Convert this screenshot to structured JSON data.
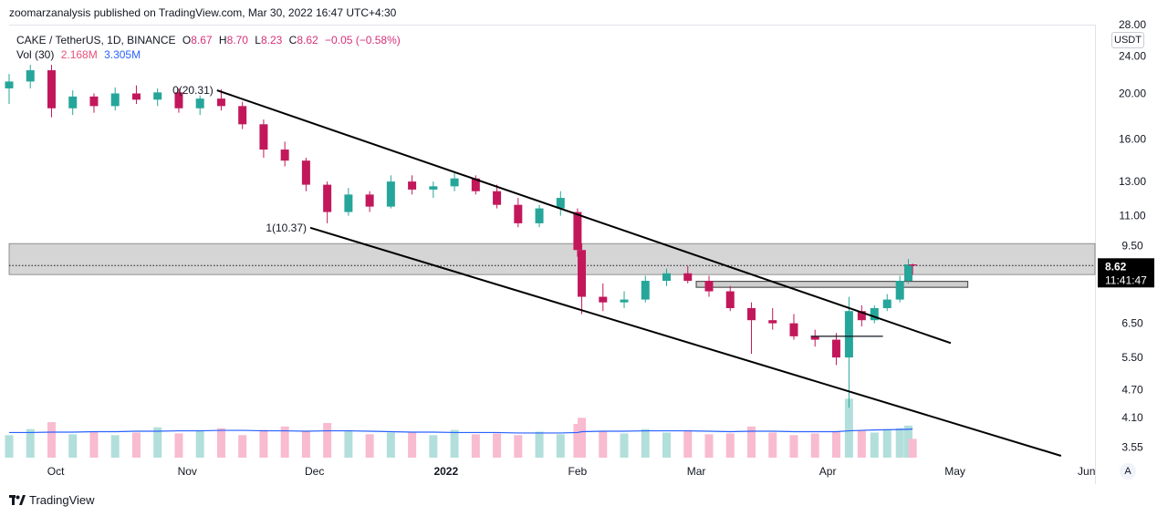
{
  "header": {
    "publisher": "zoomarzanalysis published on TradingView.com, Mar 30, 2022 16:47 UTC+4:30"
  },
  "legend": {
    "symbol": "CAKE / TetherUS, 1D, BINANCE",
    "open_label": "O",
    "open": "8.67",
    "high_label": "H",
    "high": "8.70",
    "low_label": "L",
    "low": "8.23",
    "close_label": "C",
    "close": "8.62",
    "change": "−0.05 (−0.58%)",
    "volume_label": "Vol (30)",
    "volume": "2.168M",
    "volume_ma": "3.305M"
  },
  "price_axis": {
    "unit": "USDT",
    "ticks": [
      "28.00",
      "24.00",
      "20.00",
      "16.00",
      "13.00",
      "11.00",
      "9.50",
      "6.50",
      "5.50",
      "4.70",
      "4.10",
      "3.55"
    ]
  },
  "time_axis": {
    "ticks": [
      "Oct",
      "Nov",
      "Dec",
      "2022",
      "Feb",
      "Mar",
      "Apr",
      "May",
      "Jun"
    ]
  },
  "last_price": {
    "price": "8.62",
    "countdown": "11:41:47"
  },
  "annotations": {
    "fib_0": "0(20.31)",
    "fib_1": "1(10.37)"
  },
  "scale_mode": "A",
  "brand": "TradingView",
  "colors": {
    "up": "#26a69a",
    "down": "#c2185b",
    "up_volume": "#b2dfdb",
    "down_volume": "#f8bbd0",
    "volume_ma": "#2962ff",
    "zone": "#c7c7c7",
    "trendline": "#000000"
  },
  "chart_data": {
    "type": "candlestick",
    "symbol": "CAKE / TetherUS",
    "interval": "1D",
    "exchange": "BINANCE",
    "y_scale": "log",
    "ylim": [
      3.4,
      28.0
    ],
    "x_range": [
      "2021-09-20",
      "2022-06-03"
    ],
    "candles": [
      {
        "date": "2021-09-20",
        "o": 20.5,
        "h": 22.0,
        "l": 19.0,
        "c": 21.2
      },
      {
        "date": "2021-09-25",
        "o": 21.2,
        "h": 23.0,
        "l": 20.5,
        "c": 22.4
      },
      {
        "date": "2021-09-30",
        "o": 22.4,
        "h": 23.0,
        "l": 17.8,
        "c": 18.6
      },
      {
        "date": "2021-10-05",
        "o": 18.6,
        "h": 20.3,
        "l": 18.0,
        "c": 19.7
      },
      {
        "date": "2021-10-10",
        "o": 19.7,
        "h": 20.0,
        "l": 18.2,
        "c": 18.8
      },
      {
        "date": "2021-10-15",
        "o": 18.8,
        "h": 20.6,
        "l": 18.4,
        "c": 20.0
      },
      {
        "date": "2021-10-20",
        "o": 20.0,
        "h": 20.8,
        "l": 19.0,
        "c": 19.4
      },
      {
        "date": "2021-10-25",
        "o": 19.4,
        "h": 20.5,
        "l": 18.8,
        "c": 20.1
      },
      {
        "date": "2021-10-30",
        "o": 20.1,
        "h": 20.5,
        "l": 18.2,
        "c": 18.6
      },
      {
        "date": "2021-11-04",
        "o": 18.6,
        "h": 19.8,
        "l": 18.0,
        "c": 19.5
      },
      {
        "date": "2021-11-09",
        "o": 19.5,
        "h": 20.4,
        "l": 18.4,
        "c": 18.8
      },
      {
        "date": "2021-11-14",
        "o": 18.8,
        "h": 19.2,
        "l": 16.8,
        "c": 17.2
      },
      {
        "date": "2021-11-19",
        "o": 17.2,
        "h": 17.6,
        "l": 14.6,
        "c": 15.2
      },
      {
        "date": "2021-11-24",
        "o": 15.2,
        "h": 15.8,
        "l": 14.0,
        "c": 14.4
      },
      {
        "date": "2021-11-29",
        "o": 14.4,
        "h": 14.6,
        "l": 12.4,
        "c": 12.8
      },
      {
        "date": "2021-12-04",
        "o": 12.8,
        "h": 13.0,
        "l": 10.6,
        "c": 11.2
      },
      {
        "date": "2021-12-09",
        "o": 11.2,
        "h": 12.6,
        "l": 11.0,
        "c": 12.2
      },
      {
        "date": "2021-12-14",
        "o": 12.2,
        "h": 12.4,
        "l": 11.2,
        "c": 11.5
      },
      {
        "date": "2021-12-19",
        "o": 11.5,
        "h": 13.4,
        "l": 11.4,
        "c": 13.0
      },
      {
        "date": "2021-12-24",
        "o": 13.0,
        "h": 13.4,
        "l": 12.2,
        "c": 12.5
      },
      {
        "date": "2021-12-29",
        "o": 12.5,
        "h": 13.0,
        "l": 12.0,
        "c": 12.7
      },
      {
        "date": "2022-01-03",
        "o": 12.7,
        "h": 13.6,
        "l": 12.4,
        "c": 13.2
      },
      {
        "date": "2022-01-08",
        "o": 13.2,
        "h": 13.4,
        "l": 12.2,
        "c": 12.4
      },
      {
        "date": "2022-01-13",
        "o": 12.4,
        "h": 12.8,
        "l": 11.4,
        "c": 11.6
      },
      {
        "date": "2022-01-18",
        "o": 11.6,
        "h": 12.0,
        "l": 10.4,
        "c": 10.6
      },
      {
        "date": "2022-01-23",
        "o": 10.6,
        "h": 11.6,
        "l": 10.4,
        "c": 11.4
      },
      {
        "date": "2022-01-28",
        "o": 11.4,
        "h": 12.4,
        "l": 11.0,
        "c": 12.0
      },
      {
        "date": "2022-02-01",
        "o": 11.2,
        "h": 11.4,
        "l": 9.0,
        "c": 9.3
      },
      {
        "date": "2022-02-02",
        "o": 9.3,
        "h": 9.6,
        "l": 6.8,
        "c": 7.4
      },
      {
        "date": "2022-02-07",
        "o": 7.4,
        "h": 7.9,
        "l": 6.9,
        "c": 7.2
      },
      {
        "date": "2022-02-12",
        "o": 7.2,
        "h": 7.6,
        "l": 7.0,
        "c": 7.3
      },
      {
        "date": "2022-02-17",
        "o": 7.3,
        "h": 8.2,
        "l": 7.2,
        "c": 8.0
      },
      {
        "date": "2022-02-22",
        "o": 8.0,
        "h": 8.5,
        "l": 7.8,
        "c": 8.3
      },
      {
        "date": "2022-02-27",
        "o": 8.3,
        "h": 8.6,
        "l": 7.9,
        "c": 8.0
      },
      {
        "date": "2022-03-04",
        "o": 8.0,
        "h": 8.2,
        "l": 7.4,
        "c": 7.6
      },
      {
        "date": "2022-03-09",
        "o": 7.6,
        "h": 7.8,
        "l": 6.9,
        "c": 7.0
      },
      {
        "date": "2022-03-14",
        "o": 7.0,
        "h": 7.2,
        "l": 5.6,
        "c": 6.6
      },
      {
        "date": "2022-03-19",
        "o": 6.6,
        "h": 7.0,
        "l": 6.3,
        "c": 6.5
      },
      {
        "date": "2022-03-24",
        "o": 6.5,
        "h": 6.8,
        "l": 6.0,
        "c": 6.1
      },
      {
        "date": "2022-03-29",
        "o": 6.1,
        "h": 6.3,
        "l": 5.8,
        "c": 6.0
      },
      {
        "date": "2022-04-03",
        "o": 6.0,
        "h": 6.2,
        "l": 5.3,
        "c": 5.5
      },
      {
        "date": "2022-04-06",
        "o": 5.5,
        "h": 7.4,
        "l": 4.3,
        "c": 6.9
      },
      {
        "date": "2022-04-09",
        "o": 6.9,
        "h": 7.1,
        "l": 6.4,
        "c": 6.6
      },
      {
        "date": "2022-04-12",
        "o": 6.6,
        "h": 7.1,
        "l": 6.5,
        "c": 7.0
      },
      {
        "date": "2022-04-15",
        "o": 7.0,
        "h": 7.5,
        "l": 6.9,
        "c": 7.3
      },
      {
        "date": "2022-04-18",
        "o": 7.3,
        "h": 8.2,
        "l": 7.2,
        "c": 8.0
      },
      {
        "date": "2022-04-20",
        "o": 8.0,
        "h": 8.9,
        "l": 7.9,
        "c": 8.67
      },
      {
        "date": "2022-04-21",
        "o": 8.67,
        "h": 8.7,
        "l": 8.23,
        "c": 8.62
      }
    ],
    "volume": [
      2.6,
      3.3,
      4.1,
      2.7,
      3.0,
      2.6,
      2.9,
      3.5,
      2.8,
      3.1,
      3.4,
      2.6,
      3.2,
      3.6,
      3.0,
      4.0,
      3.1,
      2.7,
      2.9,
      3.0,
      2.6,
      3.2,
      2.7,
      2.8,
      2.6,
      3.0,
      2.7,
      3.9,
      4.6,
      3.1,
      2.8,
      3.3,
      2.9,
      3.1,
      2.7,
      2.8,
      3.6,
      2.9,
      2.6,
      2.8,
      3.0,
      6.8,
      3.2,
      2.9,
      3.2,
      3.4,
      3.7,
      2.168
    ],
    "volume_ma": [
      2.9,
      2.9,
      2.95,
      2.95,
      3.0,
      3.0,
      3.05,
      3.05,
      3.1,
      3.1,
      3.15,
      3.15,
      3.1,
      3.1,
      3.05,
      3.1,
      3.1,
      3.05,
      3.0,
      2.95,
      2.95,
      2.9,
      2.9,
      2.9,
      2.85,
      2.85,
      2.85,
      2.9,
      3.0,
      3.05,
      3.05,
      3.1,
      3.1,
      3.1,
      3.05,
      3.0,
      3.05,
      3.05,
      3.0,
      3.0,
      3.0,
      3.1,
      3.15,
      3.2,
      3.22,
      3.25,
      3.28,
      3.305
    ],
    "channel": {
      "upper": {
        "from": {
          "date": "2021-11-08",
          "price": 20.31
        },
        "to": {
          "date": "2022-04-30",
          "price": 5.9
        }
      },
      "lower": {
        "from": {
          "date": "2021-11-30",
          "price": 10.37
        },
        "to": {
          "date": "2022-05-26",
          "price": 3.4
        }
      }
    },
    "fib_levels": [
      {
        "label": "0(20.31)",
        "price": 20.31,
        "date": "2021-11-08"
      },
      {
        "label": "1(10.37)",
        "price": 10.37,
        "date": "2021-11-30"
      }
    ],
    "zones": [
      {
        "from_price": 8.25,
        "to_price": 9.6,
        "from_date": "2021-09-20",
        "to_date": "2022-06-03"
      },
      {
        "from_price": 7.75,
        "to_price": 7.98,
        "from_date": "2022-03-01",
        "to_date": "2022-05-04"
      }
    ],
    "level_lines": [
      {
        "price": 6.1,
        "from_date": "2022-03-28",
        "to_date": "2022-04-14"
      }
    ],
    "last_price": 8.62,
    "grid": false
  }
}
